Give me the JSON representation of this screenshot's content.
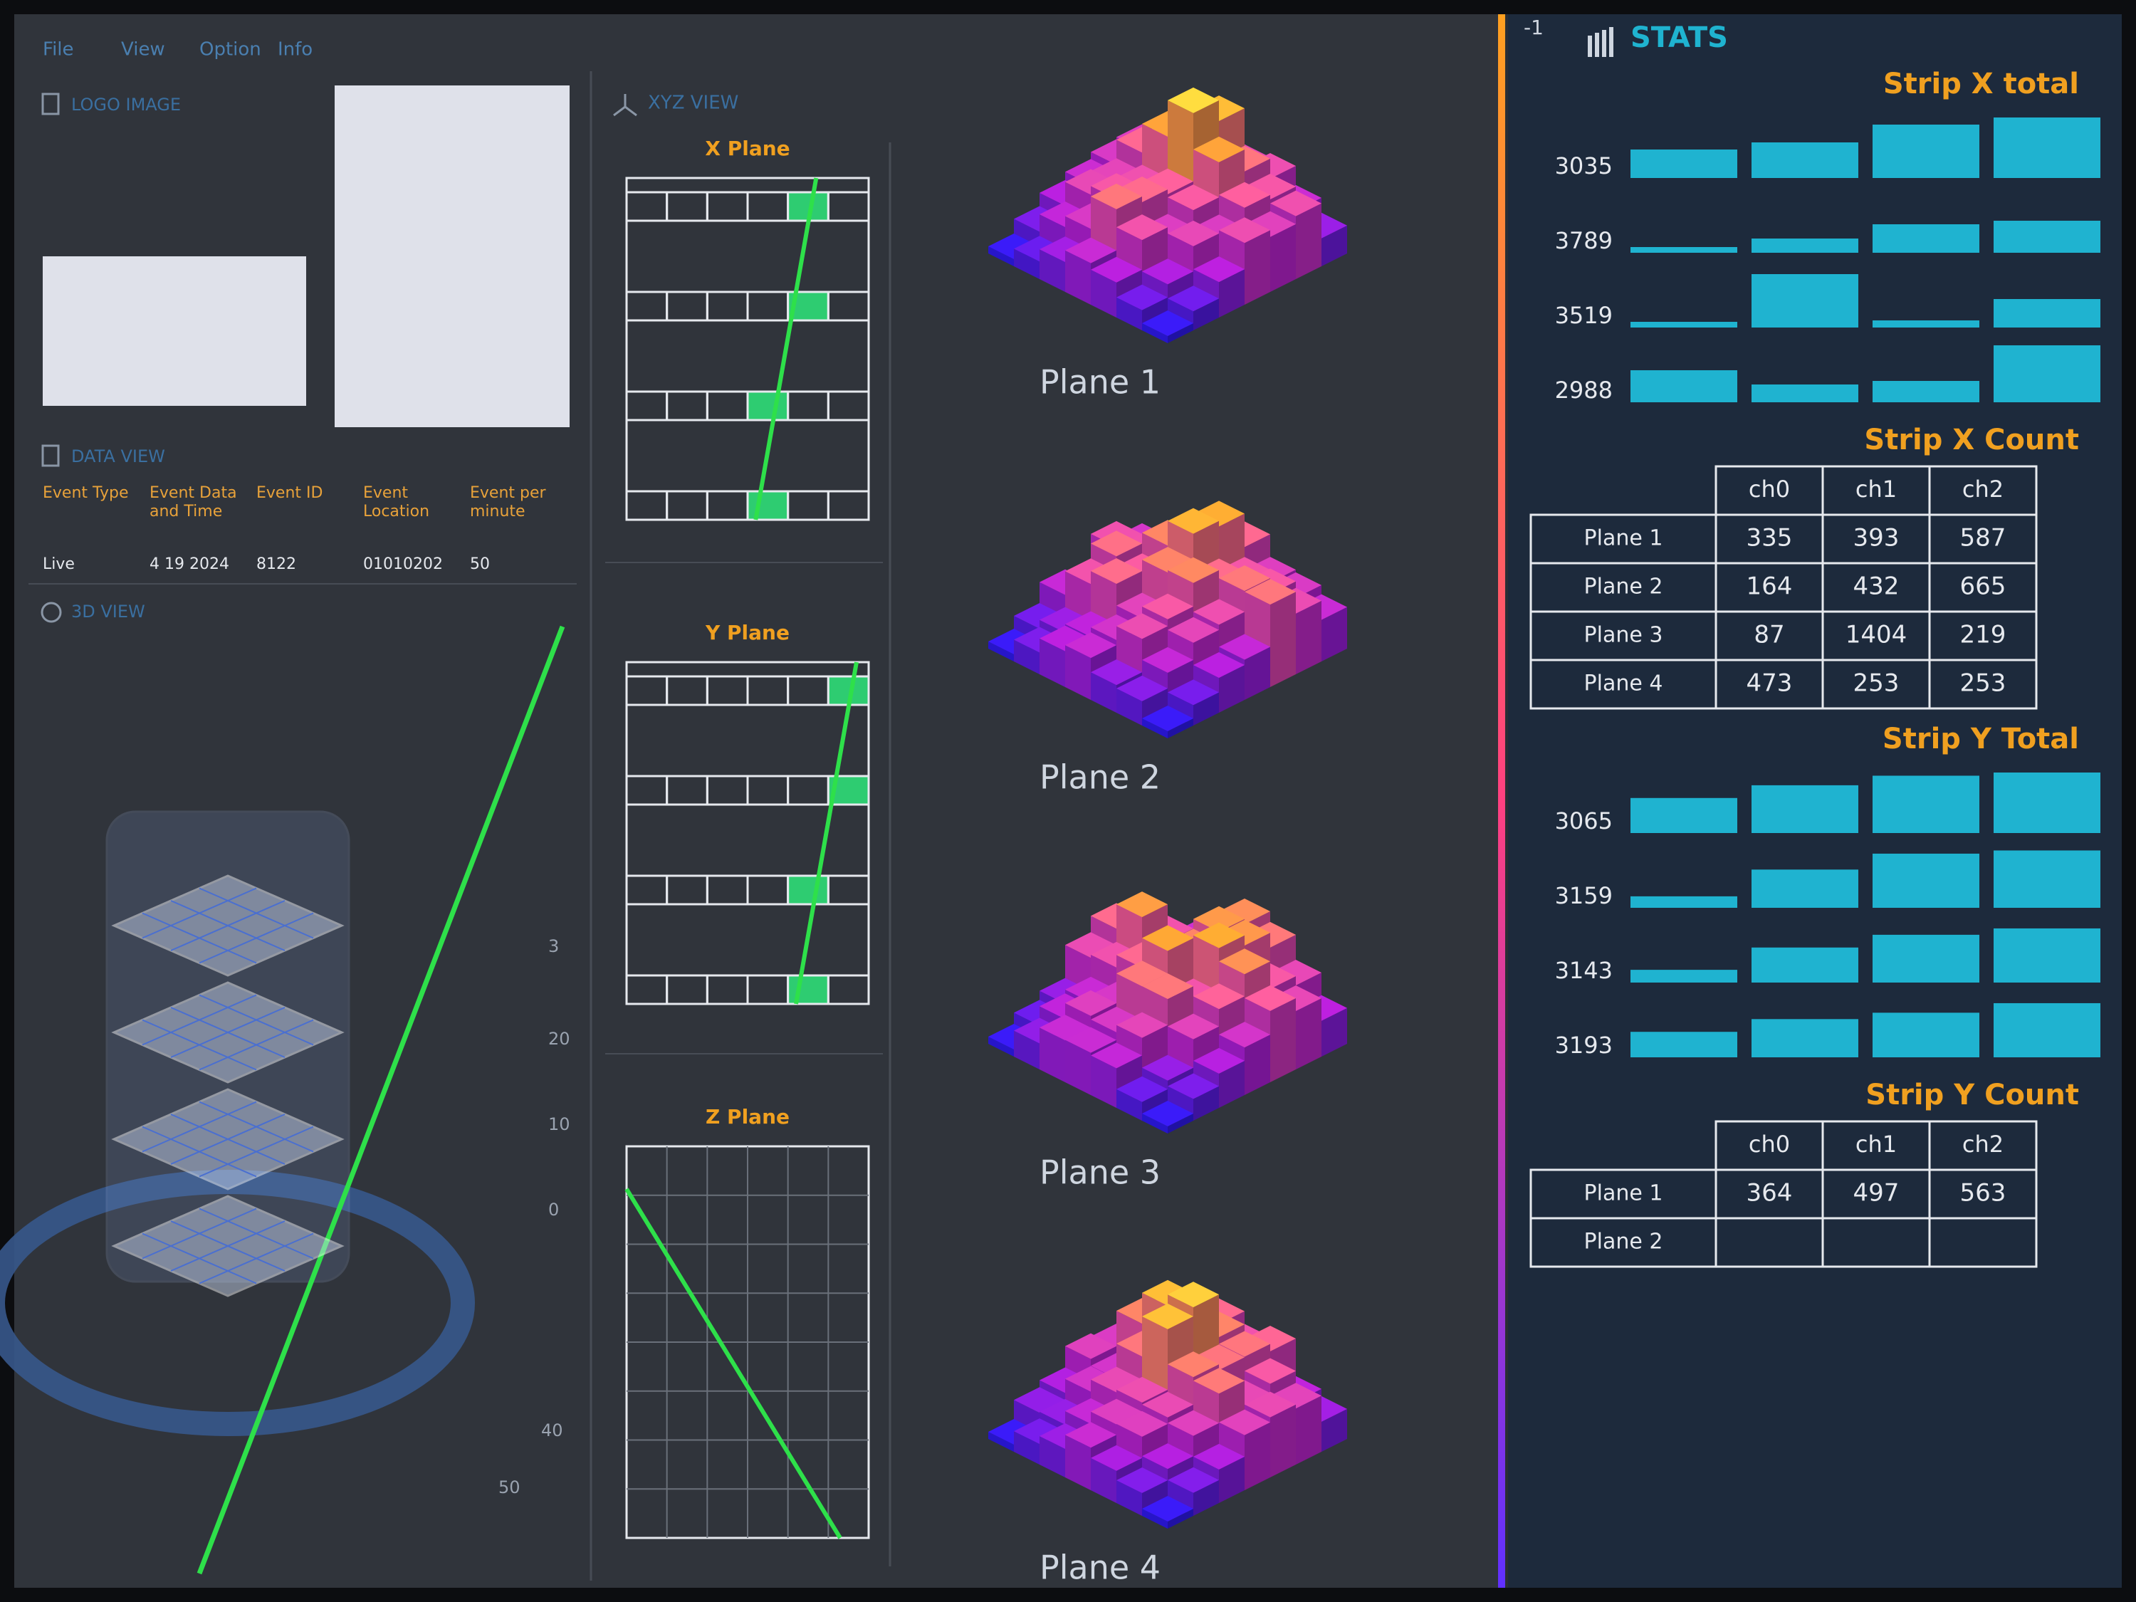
{
  "menu": [
    "File",
    "View",
    "Option",
    "Info"
  ],
  "logo_panel": {
    "title": "LOGO IMAGE"
  },
  "data_view": {
    "title": "DATA VIEW",
    "columns": [
      {
        "label": "Event Type",
        "value": "Live"
      },
      {
        "label": "Event Data and Time",
        "value": "4 19 2024"
      },
      {
        "label": "Event ID",
        "value": "8122"
      },
      {
        "label": "Event Location",
        "value": "01010202"
      },
      {
        "label": "Event per minute",
        "value": "50"
      }
    ]
  },
  "view_3d": {
    "title": "3D VIEW",
    "axis_labels": [
      "3",
      "20",
      "10",
      "0",
      "40",
      "50"
    ]
  },
  "xyz_view": {
    "title": "XYZ VIEW",
    "planes": [
      "X Plane",
      "Y Plane",
      "Z Plane"
    ]
  },
  "histograms": {
    "labels": [
      "Plane 1",
      "Plane 2",
      "Plane 3",
      "Plane 4"
    ]
  },
  "stats": {
    "corner": "-1",
    "title": "STATS",
    "strip_x_total": {
      "title": "Strip X total",
      "rows": [
        {
          "label": 3035,
          "bars": [
            40,
            50,
            75,
            85
          ]
        },
        {
          "label": 3789,
          "bars": [
            8,
            20,
            40,
            45
          ]
        },
        {
          "label": 3519,
          "bars": [
            8,
            75,
            10,
            40
          ]
        },
        {
          "label": 2988,
          "bars": [
            45,
            25,
            30,
            80
          ]
        }
      ]
    },
    "strip_x_count": {
      "title": "Strip X Count",
      "columns": [
        "ch0",
        "ch1",
        "ch2"
      ],
      "rows": [
        {
          "label": "Plane 1",
          "values": [
            335,
            393,
            587
          ]
        },
        {
          "label": "Plane 2",
          "values": [
            164,
            432,
            665
          ]
        },
        {
          "label": "Plane 3",
          "values": [
            87,
            1404,
            219
          ]
        },
        {
          "label": "Plane 4",
          "values": [
            473,
            253,
            253
          ]
        }
      ]
    },
    "strip_y_total": {
      "title": "Strip Y Total",
      "rows": [
        {
          "label": 3065,
          "bars": [
            55,
            75,
            90,
            95
          ]
        },
        {
          "label": 3159,
          "bars": [
            18,
            60,
            85,
            90
          ]
        },
        {
          "label": 3143,
          "bars": [
            20,
            55,
            75,
            85
          ]
        },
        {
          "label": 3193,
          "bars": [
            40,
            60,
            70,
            85
          ]
        }
      ]
    },
    "strip_y_count": {
      "title": "Strip Y Count",
      "columns": [
        "ch0",
        "ch1",
        "ch2"
      ],
      "rows": [
        {
          "label": "Plane 1",
          "values": [
            364,
            497,
            563
          ]
        },
        {
          "label": "Plane 2",
          "values": []
        }
      ]
    }
  }
}
